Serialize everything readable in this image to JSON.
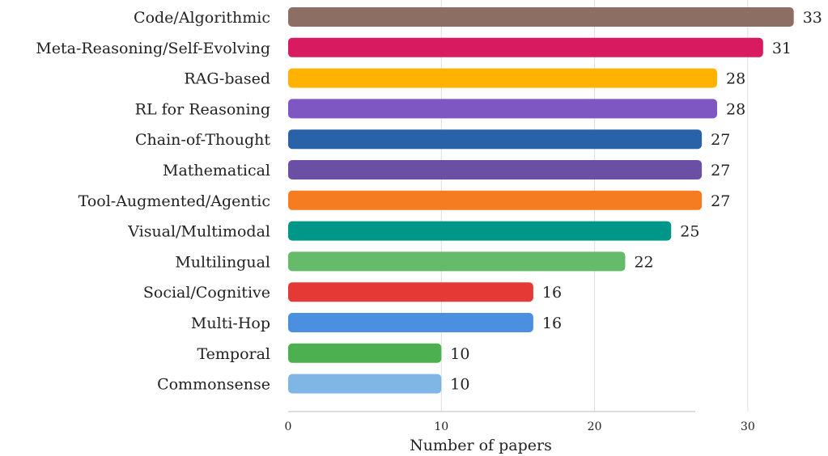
{
  "chart_data": {
    "type": "bar",
    "orientation": "horizontal",
    "categories": [
      "Code/Algorithmic",
      "Meta-Reasoning/Self-Evolving",
      "RAG-based",
      "RL for Reasoning",
      "Chain-of-Thought",
      "Mathematical",
      "Tool-Augmented/Agentic",
      "Visual/Multimodal",
      "Multilingual",
      "Social/Cognitive",
      "Multi-Hop",
      "Temporal",
      "Commonsense"
    ],
    "values": [
      33,
      31,
      28,
      28,
      27,
      27,
      27,
      25,
      22,
      16,
      16,
      10,
      10
    ],
    "value_labels": [
      "33",
      "31",
      "28",
      "28",
      "27",
      "27",
      "27",
      "25",
      "22",
      "16",
      "16",
      "10",
      "10"
    ],
    "colors": [
      "#8d6e63",
      "#d81b60",
      "#ffb300",
      "#7e57c2",
      "#2962a8",
      "#6a4fa5",
      "#f57c20",
      "#009688",
      "#66bb6a",
      "#e53935",
      "#4a8fe0",
      "#4caf50",
      "#80b6e6"
    ],
    "xlabel": "Number of papers",
    "ylabel": "",
    "title": "",
    "xlim": [
      0,
      33
    ],
    "xticks": [
      0,
      10,
      20,
      30
    ],
    "xtick_labels": [
      "0",
      "10",
      "20",
      "30"
    ],
    "grid": "vertical",
    "grid_color": "#dddddd",
    "legend": "none"
  }
}
